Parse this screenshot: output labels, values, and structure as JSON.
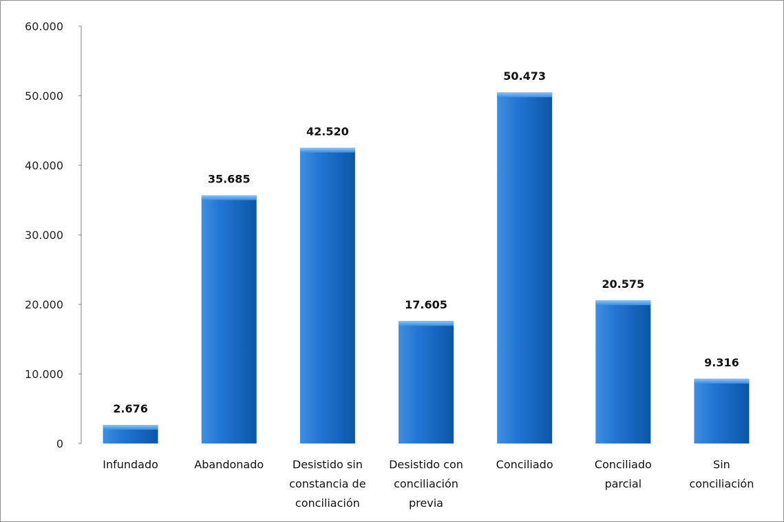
{
  "chart_data": {
    "type": "bar",
    "title": "",
    "xlabel": "",
    "ylabel": "",
    "ylim": [
      0,
      60000
    ],
    "grid": false,
    "legend": "none",
    "bar_color": "#1f6fc6",
    "bar_top_color": "#5aa3ee",
    "y_ticks": [
      0,
      10000,
      20000,
      30000,
      40000,
      50000,
      60000
    ],
    "y_tick_labels": [
      "0",
      "10.000",
      "20.000",
      "30.000",
      "40.000",
      "50.000",
      "60.000"
    ],
    "categories": [
      [
        "Infundado"
      ],
      [
        "Abandonado"
      ],
      [
        "Desistido sin",
        "constancia de",
        "conciliación"
      ],
      [
        "Desistido con",
        "conciliación",
        "previa"
      ],
      [
        "Conciliado"
      ],
      [
        "Conciliado",
        "parcial"
      ],
      [
        "Sin",
        "conciliación"
      ]
    ],
    "values": [
      2676,
      35685,
      42520,
      17605,
      50473,
      20575,
      9316
    ],
    "value_labels": [
      "2.676",
      "35.685",
      "42.520",
      "17.605",
      "50.473",
      "20.575",
      "9.316"
    ]
  }
}
